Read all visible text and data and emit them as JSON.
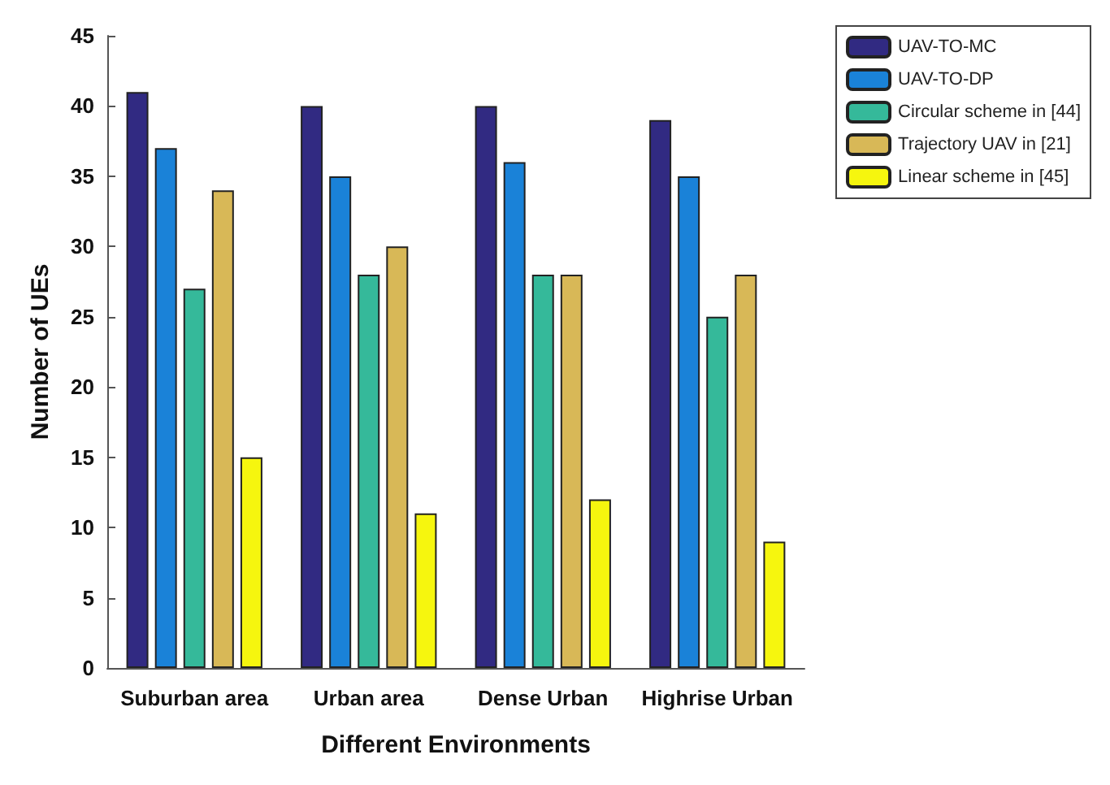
{
  "chart_data": {
    "type": "bar",
    "xlabel": "Different Environments",
    "ylabel": "Number of UEs",
    "categories": [
      "Suburban area",
      "Urban area",
      "Dense Urban",
      "Highrise Urban"
    ],
    "series": [
      {
        "name": "UAV-TO-MC",
        "color": "#312a82",
        "values": [
          41,
          40,
          40,
          39
        ]
      },
      {
        "name": "UAV-TO-DP",
        "color": "#1a82d8",
        "values": [
          37,
          35,
          36,
          35
        ]
      },
      {
        "name": "Circular scheme in [44]",
        "color": "#35b99a",
        "values": [
          27,
          28,
          28,
          25
        ]
      },
      {
        "name": "Trajectory UAV in [21]",
        "color": "#d8b857",
        "values": [
          34,
          30,
          28,
          28
        ]
      },
      {
        "name": "Linear scheme in [45]",
        "color": "#f6f60e",
        "values": [
          15,
          11,
          12,
          9
        ]
      }
    ],
    "ylim": [
      0,
      45
    ],
    "yticks": [
      0,
      5,
      10,
      15,
      20,
      25,
      30,
      35,
      40,
      45
    ],
    "grid": false,
    "legend": "top right"
  }
}
